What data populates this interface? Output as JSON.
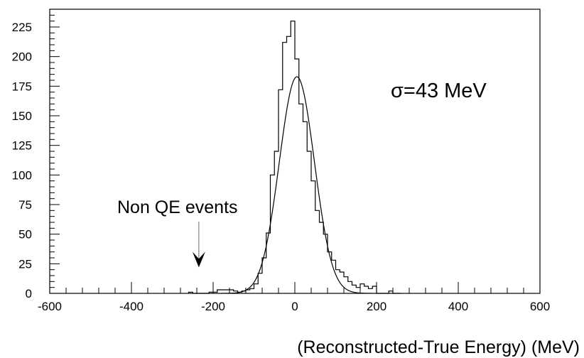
{
  "chart_data": {
    "type": "histogram",
    "xlabel": "(Reconstructed-True Energy) (MeV)",
    "ylabel": "",
    "xlim": [
      -600,
      600
    ],
    "ylim": [
      0,
      240
    ],
    "x_ticks": [
      -600,
      -400,
      -200,
      0,
      200,
      400,
      600
    ],
    "y_ticks": [
      0,
      25,
      50,
      75,
      100,
      125,
      150,
      175,
      200,
      225
    ],
    "grid": false,
    "histogram": {
      "bin_width": 10,
      "edges": [
        -260,
        -250,
        -240,
        -230,
        -220,
        -210,
        -200,
        -190,
        -180,
        -170,
        -160,
        -150,
        -140,
        -130,
        -120,
        -110,
        -100,
        -90,
        -80,
        -70,
        -60,
        -50,
        -40,
        -30,
        -20,
        -10,
        0,
        10,
        20,
        30,
        40,
        50,
        60,
        70,
        80,
        90,
        100,
        110,
        120,
        130,
        140,
        150,
        160,
        170,
        180,
        190,
        200,
        210,
        220,
        230,
        240,
        250,
        260
      ],
      "counts": [
        1,
        0,
        0,
        0,
        0,
        1,
        1,
        3,
        3,
        3,
        3,
        2,
        1,
        2,
        3,
        4,
        8,
        17,
        30,
        51,
        100,
        120,
        172,
        212,
        217,
        230,
        198,
        160,
        145,
        120,
        95,
        70,
        60,
        50,
        35,
        28,
        20,
        18,
        14,
        10,
        7,
        5,
        8,
        6,
        4,
        6,
        0,
        0,
        0,
        2,
        0,
        0
      ]
    },
    "fit": {
      "type": "gaussian",
      "mean": 5,
      "sigma": 43,
      "amplitude": 183,
      "label": "σ=43 MeV"
    },
    "annotations": [
      {
        "text": "Non QE events",
        "arrow_x": -235,
        "arrow_tip_y": 22
      }
    ]
  }
}
